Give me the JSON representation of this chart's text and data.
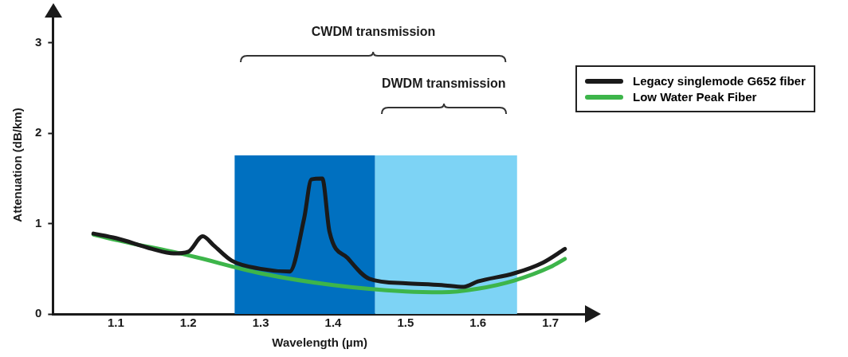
{
  "chart_data": {
    "type": "line",
    "xlabel": "Wavelength (µm)",
    "ylabel": "Attenuation (dB/km)",
    "xlim": [
      1.013,
      1.75
    ],
    "xticks": [
      1.1,
      1.2,
      1.3,
      1.4,
      1.5,
      1.6,
      1.7
    ],
    "ylim": [
      0,
      3.3
    ],
    "yticks": [
      0,
      1,
      2,
      3
    ],
    "grid": false,
    "legend": "top right",
    "marker": "none",
    "line_style": "solid",
    "series": [
      {
        "name": "Legacy singlemode G652 fiber",
        "color": "#1a1a1a",
        "x": [
          1.069,
          1.1,
          1.15,
          1.18,
          1.2,
          1.22,
          1.235,
          1.26,
          1.3,
          1.34,
          1.36,
          1.37,
          1.385,
          1.395,
          1.42,
          1.45,
          1.5,
          1.55,
          1.58,
          1.6,
          1.65,
          1.69,
          1.72
        ],
        "values": [
          0.89,
          0.84,
          0.72,
          0.67,
          0.69,
          0.86,
          0.76,
          0.59,
          0.5,
          0.47,
          1.06,
          1.49,
          1.5,
          0.91,
          0.62,
          0.39,
          0.34,
          0.32,
          0.3,
          0.36,
          0.45,
          0.57,
          0.72
        ]
      },
      {
        "name": "Low Water Peak Fiber",
        "color": "#3db54a",
        "x": [
          1.069,
          1.1,
          1.2,
          1.3,
          1.4,
          1.5,
          1.55,
          1.6,
          1.65,
          1.7,
          1.72
        ],
        "values": [
          0.88,
          0.82,
          0.65,
          0.45,
          0.32,
          0.25,
          0.24,
          0.28,
          0.37,
          0.52,
          0.61
        ]
      }
    ],
    "bands": [
      {
        "axis": "x",
        "from": 1.264,
        "to": 1.458,
        "color": "#0070c0"
      },
      {
        "axis": "x",
        "from": 1.458,
        "to": 1.654,
        "color": "#7dd3f5"
      }
    ],
    "annotations": [
      "CWDM transmission",
      "DWDM transmission"
    ]
  }
}
